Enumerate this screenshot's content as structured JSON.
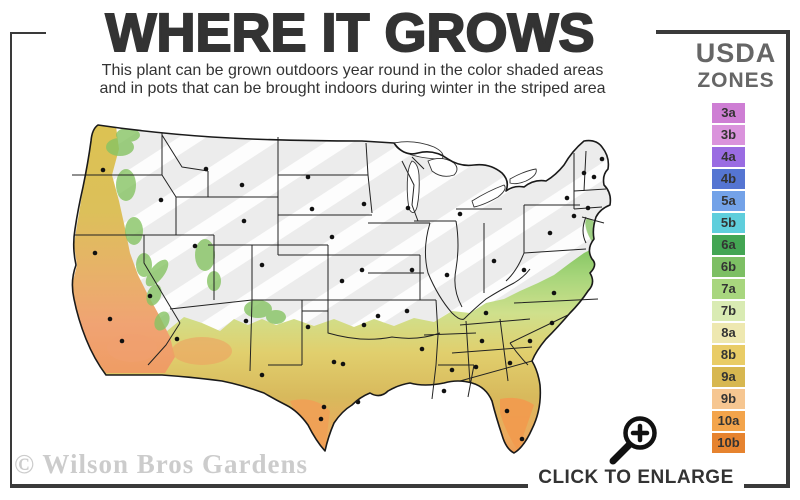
{
  "header": {
    "title": "WHERE IT GROWS",
    "subtitle_line1": "This plant can be grown outdoors year round in the color shaded areas",
    "subtitle_line2": "and in pots that can be brought indoors during winter in the striped area"
  },
  "legend": {
    "title_line1": "USDA",
    "title_line2": "ZONES",
    "zones": [
      {
        "label": "3a",
        "color": "#CE7ED4"
      },
      {
        "label": "3b",
        "color": "#DA93DC"
      },
      {
        "label": "4a",
        "color": "#9A6CE2"
      },
      {
        "label": "4b",
        "color": "#5575D2"
      },
      {
        "label": "5a",
        "color": "#73A2E8"
      },
      {
        "label": "5b",
        "color": "#5FCEDC"
      },
      {
        "label": "6a",
        "color": "#43A553"
      },
      {
        "label": "6b",
        "color": "#7DBF64"
      },
      {
        "label": "7a",
        "color": "#A8D67E"
      },
      {
        "label": "7b",
        "color": "#D9EBB3"
      },
      {
        "label": "8a",
        "color": "#EEE8B0"
      },
      {
        "label": "8b",
        "color": "#E9CC66"
      },
      {
        "label": "9a",
        "color": "#D7B750"
      },
      {
        "label": "9b",
        "color": "#F6C691"
      },
      {
        "label": "10a",
        "color": "#F3A44B"
      },
      {
        "label": "10b",
        "color": "#E6832F"
      }
    ]
  },
  "map": {
    "region": "continental United States",
    "base_color": "#ECECEC",
    "stripe_color": "#FFFFFF",
    "outline_color": "#1A1A1A",
    "grow_gradient": [
      "#7FC35F",
      "#A6D57A",
      "#CFE08C",
      "#E1CF6D",
      "#D8B95C",
      "#ECAA5E",
      "#F0944F"
    ]
  },
  "footer": {
    "watermark": "© Wilson Bros Gardens",
    "cta": "CLICK TO ENLARGE"
  }
}
